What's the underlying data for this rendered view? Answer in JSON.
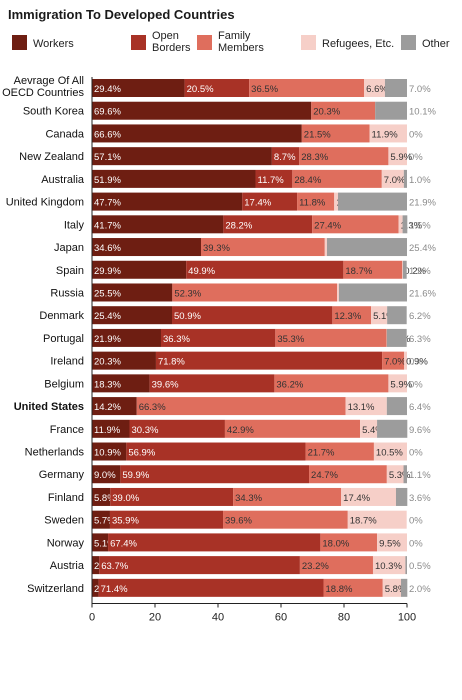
{
  "chart_data": {
    "type": "bar",
    "orientation": "horizontal",
    "stacked": true,
    "title": "Immigration To Developed Countries",
    "xlabel": "",
    "ylabel": "",
    "xlim": [
      0,
      100
    ],
    "x_ticks": [
      "0",
      "20",
      "40",
      "60",
      "80",
      "100"
    ],
    "legend_position": "top",
    "grid": false,
    "categories": [
      "Aevrage Of All\nOECD Countries",
      "South Korea",
      "Canada",
      "New Zealand",
      "Australia",
      "United Kingdom",
      "Italy",
      "Japan",
      "Spain",
      "Russia",
      "Denmark",
      "Portugal",
      "Ireland",
      "Belgium",
      "United States",
      "France",
      "Netherlands",
      "Germany",
      "Finland",
      "Sweden",
      "Norway",
      "Austria",
      "Switzerland"
    ],
    "highlighted_category": "United States",
    "series": [
      {
        "name": "Workers",
        "color": "#6e1e12",
        "values": [
          29.4,
          69.6,
          66.6,
          57.1,
          51.9,
          47.7,
          41.7,
          34.6,
          29.9,
          25.5,
          25.4,
          21.9,
          20.3,
          18.3,
          14.2,
          11.9,
          10.9,
          9.0,
          5.8,
          5.7,
          5.1,
          2.3,
          2.1
        ],
        "labels": [
          "29.4%",
          "69.6%",
          "66.6%",
          "57.1%",
          "51.9%",
          "47.7%",
          "41.7%",
          "34.6%",
          "29.9%",
          "25.5%",
          "25.4%",
          "21.9%",
          "20.3%",
          "18.3%",
          "14.2%",
          "11.9%",
          "10.9%",
          "9.0%",
          "5.8%",
          "5.7%",
          "5.1%",
          "2.3%",
          "2.1%"
        ]
      },
      {
        "name": "Open\nBorders",
        "color": "#a83226",
        "values": [
          20.5,
          0,
          0,
          8.7,
          11.7,
          17.4,
          28.2,
          0,
          49.9,
          0,
          50.9,
          36.3,
          71.8,
          39.6,
          0,
          30.3,
          56.9,
          59.9,
          39.0,
          35.9,
          67.4,
          63.7,
          71.4
        ],
        "labels": [
          "20.5%",
          "",
          "",
          "8.7%",
          "11.7%",
          "17.4%",
          "28.2%",
          "",
          "49.9%",
          "",
          "50.9%",
          "36.3%",
          "71.8%",
          "39.6%",
          "",
          "30.3%",
          "56.9%",
          "59.9%",
          "39.0%",
          "35.9%",
          "67.4%",
          "63.7%",
          "71.4%"
        ]
      },
      {
        "name": "Family\nMembers",
        "color": "#df6e5d",
        "values": [
          36.5,
          20.3,
          21.5,
          28.3,
          28.4,
          11.8,
          27.4,
          39.3,
          18.7,
          52.3,
          12.3,
          35.3,
          7.0,
          36.2,
          66.3,
          42.9,
          21.7,
          24.7,
          34.3,
          39.6,
          18.0,
          23.2,
          18.8
        ],
        "labels": [
          "36.5%",
          "20.3%",
          "21.5%",
          "28.3%",
          "28.4%",
          "11.8%",
          "27.4%",
          "39.3%",
          "18.7%",
          "52.3%",
          "12.3%",
          "35.3%",
          "7.0%",
          "36.2%",
          "66.3%",
          "42.9%",
          "21.7%",
          "24.7%",
          "34.3%",
          "39.6%",
          "18.0%",
          "23.2%",
          "18.8%"
        ]
      },
      {
        "name": "Refugees, Etc.",
        "color": "#f6cfc8",
        "values": [
          6.6,
          0,
          11.9,
          5.9,
          7.0,
          1.2,
          1.3,
          0.7,
          0.2,
          0.6,
          5.1,
          0.1,
          0.9,
          5.9,
          13.1,
          5.4,
          10.5,
          5.3,
          17.4,
          18.7,
          9.5,
          10.3,
          5.8
        ],
        "labels": [
          "6.6%",
          "",
          "11.9%",
          "5.9%",
          "7.0%",
          "1.2%",
          "1.3%",
          "0.7%",
          "0.2%",
          "0.6%",
          "5.1%",
          "0.1%",
          "0.9%",
          "5.9%",
          "13.1%",
          "5.4%",
          "10.5%",
          "5.3%",
          "17.4%",
          "18.7%",
          "9.5%",
          "10.3%",
          "5.8%"
        ]
      },
      {
        "name": "Other",
        "color": "#9c9c9c",
        "values": [
          7.0,
          10.1,
          0,
          0,
          1.0,
          21.9,
          1.5,
          25.4,
          1.2,
          21.6,
          6.2,
          6.3,
          0,
          0,
          6.4,
          9.6,
          0,
          1.1,
          3.6,
          0,
          0,
          0.5,
          2.0
        ],
        "labels": [
          "7.0%",
          "10.1%",
          "0%",
          "0%",
          "1.0%",
          "21.9%",
          "1.5%",
          "25.4%",
          "1.2%",
          "21.6%",
          "6.2%",
          "6.3%",
          "0%",
          "0%",
          "6.4%",
          "9.6%",
          "0%",
          "1.1%",
          "3.6%",
          "0%",
          "0%",
          "0.5%",
          "2.0%"
        ]
      }
    ]
  }
}
